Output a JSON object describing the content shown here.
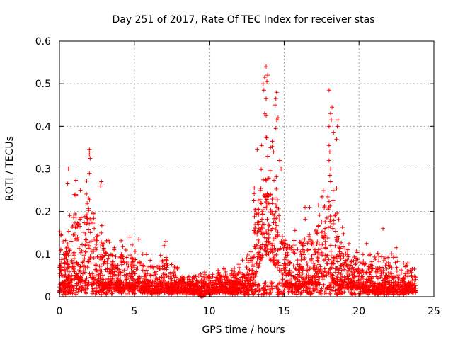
{
  "chart_data": {
    "type": "scatter",
    "title": "Day 251 of 2017, Rate Of TEC Index for receiver stas",
    "xlabel": "GPS time / hours",
    "ylabel": "ROTI / TECUs",
    "xlim": [
      0,
      25
    ],
    "ylim": [
      0,
      0.6
    ],
    "xticks": [
      0,
      5,
      10,
      15,
      20,
      25
    ],
    "xtick_labels": [
      "0",
      "5",
      "10",
      "15",
      "20",
      "25"
    ],
    "yticks": [
      0,
      0.1,
      0.2,
      0.3,
      0.4,
      0.5,
      0.6
    ],
    "ytick_labels": [
      "0",
      "0.1",
      "0.2",
      "0.3",
      "0.4",
      "0.5",
      "0.6"
    ],
    "grid": true,
    "marker": "plus",
    "color": "#ff0000",
    "x_data_range": [
      0,
      23.8
    ],
    "envelope": {
      "x": [
        0.0,
        0.3,
        0.5,
        0.8,
        1.0,
        1.3,
        1.6,
        1.8,
        2.0,
        2.2,
        2.5,
        2.8,
        3.0,
        3.3,
        3.6,
        4.0,
        4.5,
        5.0,
        5.5,
        6.0,
        6.5,
        7.0,
        7.5,
        8.0,
        8.5,
        9.0,
        9.5,
        10.0,
        10.5,
        11.0,
        11.5,
        12.0,
        12.5,
        12.8,
        13.0,
        13.3,
        13.6,
        13.8,
        14.0,
        14.3,
        14.6,
        14.8,
        15.0,
        15.3,
        15.6,
        16.0,
        16.5,
        17.0,
        17.3,
        17.6,
        17.8,
        18.0,
        18.2,
        18.4,
        18.7,
        19.0,
        19.5,
        20.0,
        20.5,
        21.0,
        21.5,
        22.0,
        22.5,
        23.0,
        23.5,
        23.8
      ],
      "upper": [
        0.12,
        0.1,
        0.12,
        0.16,
        0.2,
        0.22,
        0.18,
        0.22,
        0.24,
        0.22,
        0.16,
        0.15,
        0.12,
        0.1,
        0.1,
        0.1,
        0.11,
        0.09,
        0.08,
        0.07,
        0.08,
        0.09,
        0.06,
        0.05,
        0.05,
        0.05,
        0.04,
        0.05,
        0.05,
        0.05,
        0.05,
        0.06,
        0.07,
        0.12,
        0.2,
        0.25,
        0.28,
        0.3,
        0.28,
        0.3,
        0.25,
        0.22,
        0.14,
        0.12,
        0.13,
        0.13,
        0.14,
        0.15,
        0.17,
        0.2,
        0.22,
        0.25,
        0.22,
        0.18,
        0.14,
        0.12,
        0.1,
        0.09,
        0.08,
        0.08,
        0.09,
        0.08,
        0.07,
        0.06,
        0.06,
        0.05
      ],
      "lower": [
        0.01,
        0.02,
        0.02,
        0.03,
        0.04,
        0.04,
        0.03,
        0.04,
        0.05,
        0.04,
        0.03,
        0.02,
        0.02,
        0.02,
        0.02,
        0.01,
        0.02,
        0.02,
        0.01,
        0.01,
        0.01,
        0.01,
        0.01,
        0.01,
        0.01,
        0.01,
        0.0,
        0.01,
        0.01,
        0.01,
        0.01,
        0.01,
        0.01,
        0.02,
        0.04,
        0.07,
        0.1,
        0.1,
        0.09,
        0.08,
        0.06,
        0.05,
        0.03,
        0.02,
        0.02,
        0.02,
        0.03,
        0.03,
        0.03,
        0.04,
        0.05,
        0.05,
        0.04,
        0.03,
        0.02,
        0.02,
        0.02,
        0.02,
        0.01,
        0.01,
        0.01,
        0.01,
        0.01,
        0.01,
        0.01,
        0.01
      ]
    },
    "outliers": [
      {
        "x": 0.6,
        "y": 0.3
      },
      {
        "x": 0.55,
        "y": 0.265
      },
      {
        "x": 2.0,
        "y": 0.345
      },
      {
        "x": 2.0,
        "y": 0.335
      },
      {
        "x": 2.05,
        "y": 0.325
      },
      {
        "x": 2.0,
        "y": 0.29
      },
      {
        "x": 2.8,
        "y": 0.27
      },
      {
        "x": 2.75,
        "y": 0.26
      },
      {
        "x": 1.4,
        "y": 0.25
      },
      {
        "x": 1.1,
        "y": 0.24
      },
      {
        "x": 7.1,
        "y": 0.13
      },
      {
        "x": 7.0,
        "y": 0.12
      },
      {
        "x": 4.7,
        "y": 0.14
      },
      {
        "x": 5.3,
        "y": 0.135
      },
      {
        "x": 11.0,
        "y": 0.065
      },
      {
        "x": 12.6,
        "y": 0.08
      },
      {
        "x": 13.8,
        "y": 0.54
      },
      {
        "x": 13.9,
        "y": 0.52
      },
      {
        "x": 13.85,
        "y": 0.505
      },
      {
        "x": 13.7,
        "y": 0.515
      },
      {
        "x": 13.6,
        "y": 0.5
      },
      {
        "x": 13.65,
        "y": 0.485
      },
      {
        "x": 13.8,
        "y": 0.465
      },
      {
        "x": 14.5,
        "y": 0.48
      },
      {
        "x": 14.45,
        "y": 0.465
      },
      {
        "x": 14.4,
        "y": 0.45
      },
      {
        "x": 14.5,
        "y": 0.415
      },
      {
        "x": 13.7,
        "y": 0.43
      },
      {
        "x": 13.8,
        "y": 0.425
      },
      {
        "x": 14.6,
        "y": 0.42
      },
      {
        "x": 14.45,
        "y": 0.395
      },
      {
        "x": 13.8,
        "y": 0.375
      },
      {
        "x": 14.2,
        "y": 0.365
      },
      {
        "x": 14.1,
        "y": 0.35
      },
      {
        "x": 13.2,
        "y": 0.345
      },
      {
        "x": 13.5,
        "y": 0.355
      },
      {
        "x": 14.3,
        "y": 0.34
      },
      {
        "x": 13.9,
        "y": 0.33
      },
      {
        "x": 14.7,
        "y": 0.32
      },
      {
        "x": 14.8,
        "y": 0.3
      },
      {
        "x": 16.4,
        "y": 0.21
      },
      {
        "x": 16.7,
        "y": 0.21
      },
      {
        "x": 18.0,
        "y": 0.485
      },
      {
        "x": 18.2,
        "y": 0.445
      },
      {
        "x": 18.1,
        "y": 0.43
      },
      {
        "x": 18.15,
        "y": 0.415
      },
      {
        "x": 18.6,
        "y": 0.415
      },
      {
        "x": 18.55,
        "y": 0.4
      },
      {
        "x": 18.0,
        "y": 0.4
      },
      {
        "x": 18.3,
        "y": 0.385
      },
      {
        "x": 18.5,
        "y": 0.37
      },
      {
        "x": 18.0,
        "y": 0.355
      },
      {
        "x": 18.05,
        "y": 0.34
      },
      {
        "x": 18.0,
        "y": 0.32
      },
      {
        "x": 18.1,
        "y": 0.3
      },
      {
        "x": 18.05,
        "y": 0.285
      },
      {
        "x": 18.1,
        "y": 0.27
      },
      {
        "x": 18.5,
        "y": 0.255
      },
      {
        "x": 20.5,
        "y": 0.125
      },
      {
        "x": 21.6,
        "y": 0.16
      },
      {
        "x": 22.5,
        "y": 0.115
      },
      {
        "x": 23.7,
        "y": 0.065
      }
    ]
  }
}
